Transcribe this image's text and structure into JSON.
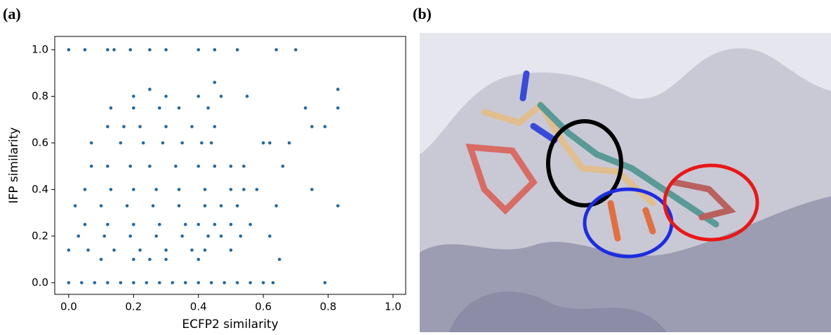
{
  "panel_labels": [
    "(a)",
    "(b)"
  ],
  "chart_data": {
    "type": "scatter",
    "xlabel": "ECFP2 similarity",
    "ylabel": "IFP similarity",
    "color": "#1f6aa5",
    "xlim": [
      -0.043,
      1.039
    ],
    "ylim": [
      -0.05,
      1.057
    ],
    "xticks": [
      {
        "value": 0,
        "label": "0.0"
      },
      0.2,
      0.4,
      0.6,
      0.8,
      {
        "value": 1,
        "label": "1.0"
      }
    ],
    "yticks": [
      {
        "value": 0,
        "label": "0.0"
      },
      0.2,
      0.4,
      0.6,
      0.8,
      {
        "value": 1,
        "label": "1.0"
      }
    ],
    "x": [
      0,
      0.04,
      0.08,
      0.12,
      0.16,
      0.2,
      0.24,
      0.28,
      0.32,
      0.36,
      0.4,
      0.44,
      0.48,
      0.52,
      0.56,
      0.6,
      0.63,
      0.79,
      0,
      0.05,
      0.12,
      0.14,
      0.19,
      0.25,
      0.3,
      0.4,
      0.45,
      0.52,
      0.64,
      0.7,
      0.25,
      0.83,
      0.45,
      0.2,
      0.3,
      0.4,
      0.47,
      0.55,
      0.13,
      0.2,
      0.28,
      0.34,
      0.43,
      0.73,
      0.83,
      0.12,
      0.17,
      0.22,
      0.3,
      0.38,
      0.45,
      0.75,
      0.79,
      0.07,
      0.16,
      0.23,
      0.29,
      0.35,
      0.41,
      0.44,
      0.6,
      0.62,
      0.68,
      0.07,
      0.12,
      0.19,
      0.25,
      0.33,
      0.4,
      0.45,
      0.5,
      0.54,
      0.66,
      0.05,
      0.13,
      0.2,
      0.27,
      0.34,
      0.42,
      0.5,
      0.54,
      0.58,
      0.75,
      0.02,
      0.1,
      0.18,
      0.26,
      0.34,
      0.42,
      0.47,
      0.52,
      0.64,
      0.83,
      0.05,
      0.12,
      0.2,
      0.28,
      0.36,
      0.45,
      0.5,
      0.56,
      0.4,
      0.03,
      0.11,
      0.19,
      0.27,
      0.35,
      0.43,
      0.47,
      0.53,
      0.62,
      0,
      0.06,
      0.14,
      0.22,
      0.3,
      0.38,
      0.42,
      0.5,
      0.1,
      0.2,
      0.25,
      0.3,
      0.4,
      0.65
    ],
    "values": [
      0,
      0,
      0,
      0,
      0,
      0,
      0,
      0,
      0,
      0,
      0,
      0,
      0,
      0,
      0,
      0,
      0,
      0,
      1,
      1,
      1,
      1,
      1,
      1,
      1,
      1,
      1,
      1,
      1,
      1,
      0.83,
      0.83,
      0.86,
      0.8,
      0.8,
      0.8,
      0.8,
      0.8,
      0.75,
      0.75,
      0.75,
      0.75,
      0.75,
      0.75,
      0.75,
      0.67,
      0.67,
      0.67,
      0.67,
      0.67,
      0.67,
      0.67,
      0.67,
      0.6,
      0.6,
      0.6,
      0.6,
      0.6,
      0.6,
      0.6,
      0.6,
      0.6,
      0.6,
      0.5,
      0.5,
      0.5,
      0.5,
      0.5,
      0.5,
      0.5,
      0.5,
      0.5,
      0.5,
      0.4,
      0.4,
      0.4,
      0.4,
      0.4,
      0.4,
      0.4,
      0.4,
      0.4,
      0.4,
      0.33,
      0.33,
      0.33,
      0.33,
      0.33,
      0.33,
      0.33,
      0.33,
      0.33,
      0.33,
      0.25,
      0.25,
      0.25,
      0.25,
      0.25,
      0.25,
      0.25,
      0.25,
      0.25,
      0.2,
      0.2,
      0.2,
      0.2,
      0.2,
      0.2,
      0.2,
      0.2,
      0.2,
      0.14,
      0.14,
      0.14,
      0.14,
      0.14,
      0.14,
      0.14,
      0.14,
      0.1,
      0.1,
      0.1,
      0.1,
      0.1,
      0.1
    ]
  }
}
